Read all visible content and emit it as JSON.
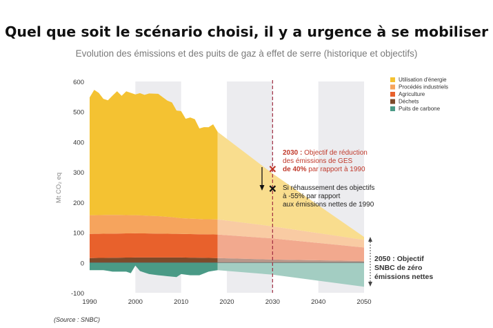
{
  "headline": "Quel que soit le scénario choisi, il y a urgence à se mobiliser",
  "source": "(Source : SNBC)",
  "chart_data": {
    "type": "area",
    "title": "Evolution des émissions et des puits de gaz à effet de serre (historique et objectifs)",
    "ylabel": "Mt CO₂ eq",
    "xlabel": "",
    "xlim": [
      1990,
      2050
    ],
    "ylim": [
      -100,
      600
    ],
    "x_ticks": [
      1990,
      2000,
      2010,
      2020,
      2030,
      2040,
      2050
    ],
    "y_ticks": [
      -100,
      0,
      100,
      200,
      300,
      400,
      500,
      600
    ],
    "shaded_bands": [
      [
        2000,
        2010
      ],
      [
        2020,
        2030
      ],
      [
        2040,
        2050
      ]
    ],
    "history_end": 2018,
    "target_line_x": 2030,
    "legend_position": "top-right",
    "series": [
      {
        "name": "Utilisation d'énergie",
        "color": "#f4c232",
        "projection_color": "#f9dd8e",
        "x": [
          1990,
          1991,
          1992,
          1993,
          1994,
          1995,
          1996,
          1997,
          1998,
          1999,
          2000,
          2001,
          2002,
          2003,
          2004,
          2005,
          2006,
          2007,
          2008,
          2009,
          2010,
          2011,
          2012,
          2013,
          2014,
          2015,
          2016,
          2017,
          2018,
          2030,
          2050
        ],
        "values": [
          390,
          415,
          405,
          385,
          380,
          395,
          410,
          395,
          410,
          405,
          400,
          405,
          400,
          405,
          405,
          405,
          395,
          385,
          380,
          355,
          355,
          330,
          335,
          330,
          300,
          305,
          305,
          315,
          290,
          175,
          10
        ]
      },
      {
        "name": "Procédés industriels",
        "color": "#f6a45d",
        "projection_color": "#f9cba3",
        "x": [
          1990,
          1995,
          2000,
          2005,
          2008,
          2010,
          2015,
          2018,
          2030,
          2050
        ],
        "values": [
          62,
          62,
          60,
          58,
          55,
          52,
          50,
          50,
          40,
          25
        ]
      },
      {
        "name": "Agriculture",
        "color": "#e8612c",
        "projection_color": "#f2a98e",
        "x": [
          1990,
          2000,
          2010,
          2018,
          2030,
          2050
        ],
        "values": [
          80,
          80,
          78,
          78,
          70,
          45
        ]
      },
      {
        "name": "Déchets",
        "color": "#7d4a2a",
        "projection_color": "#b8978a",
        "x": [
          1990,
          2000,
          2010,
          2018,
          2030,
          2050
        ],
        "values": [
          15,
          17,
          17,
          15,
          10,
          5
        ]
      },
      {
        "name": "Puits de carbone",
        "color": "#4a9a86",
        "projection_color": "#a3cdc2",
        "x": [
          1990,
          1993,
          1995,
          1998,
          1999,
          2000,
          2001,
          2003,
          2005,
          2007,
          2009,
          2010,
          2012,
          2014,
          2016,
          2018,
          2030,
          2050
        ],
        "values": [
          -25,
          -25,
          -30,
          -30,
          -35,
          -10,
          -28,
          -38,
          -42,
          -45,
          -48,
          -38,
          -42,
          -42,
          -30,
          -25,
          -40,
          -80
        ]
      }
    ],
    "annotations": [
      {
        "id": "target-2030",
        "x": 2030,
        "y": 310,
        "marker": "x",
        "color": "#c0392b",
        "lines": [
          {
            "bold": "2030 :",
            "text": " Objectif de réduction"
          },
          {
            "text": "des émissions de GES"
          },
          {
            "bold": "de 40%",
            "text": " par rapport à 1990"
          }
        ]
      },
      {
        "id": "target-55",
        "x": 2030,
        "y": 245,
        "marker": "x",
        "color": "#111111",
        "lines": [
          {
            "text": "Si réhaussement des objectifs"
          },
          {
            "text": "à -55% par rapport"
          },
          {
            "text": "aux émissions nettes de 1990"
          }
        ]
      },
      {
        "id": "target-2050",
        "x": 2050,
        "y": 0,
        "color": "#333333",
        "lines": [
          {
            "bold": "2050 : Objectif"
          },
          {
            "bold": "SNBC de zéro"
          },
          {
            "bold": "émissions nettes"
          }
        ]
      }
    ]
  }
}
